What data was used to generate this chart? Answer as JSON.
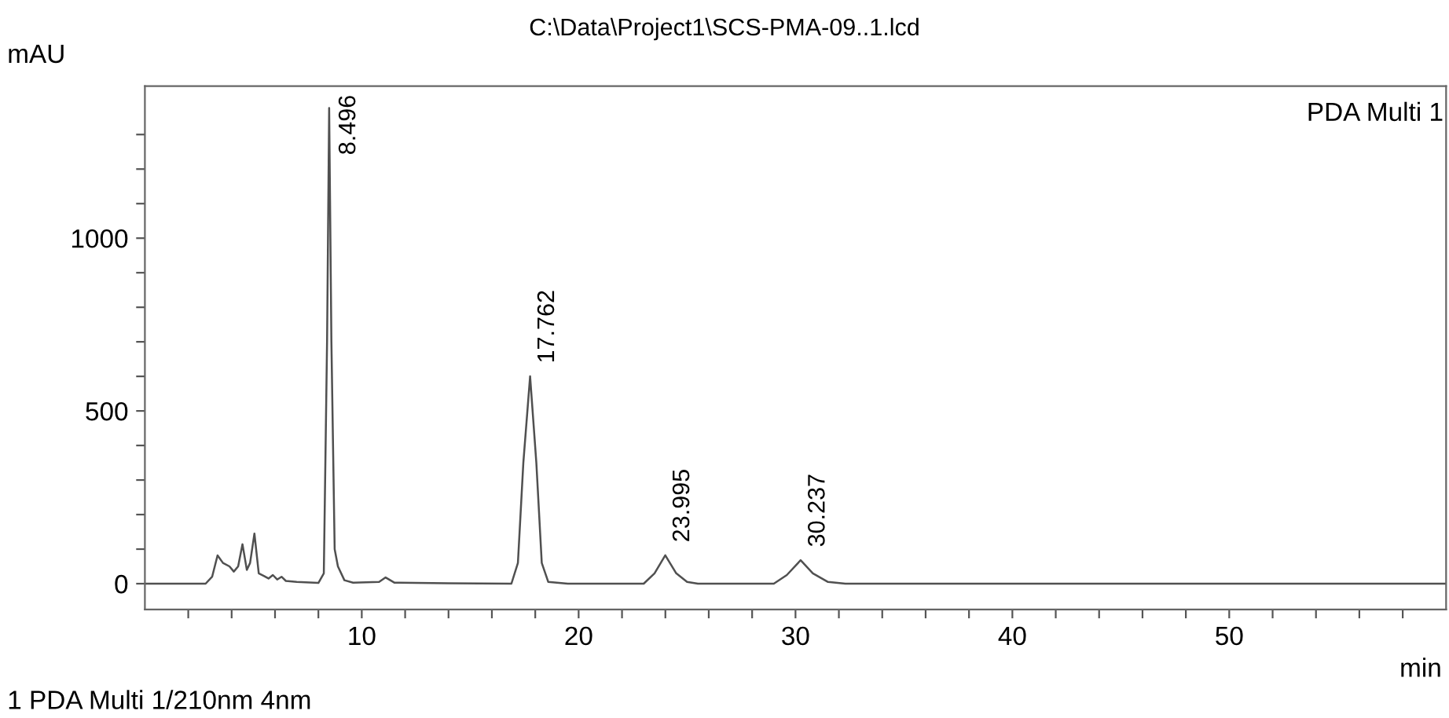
{
  "chart_data": {
    "type": "line",
    "title": "C:\\Data\\Project1\\SCS-PMA-09..1.lcd",
    "xlabel": "min",
    "ylabel": "mAU",
    "xlim": [
      0,
      60
    ],
    "ylim": [
      -75,
      1440
    ],
    "xticks": [
      {
        "value": 2,
        "label": null
      },
      {
        "value": 4,
        "label": null
      },
      {
        "value": 6,
        "label": null
      },
      {
        "value": 8,
        "label": null
      },
      10,
      {
        "value": 12,
        "label": null
      },
      {
        "value": 14,
        "label": null
      },
      {
        "value": 16,
        "label": null
      },
      {
        "value": 18,
        "label": null
      },
      20,
      {
        "value": 22,
        "label": null
      },
      {
        "value": 24,
        "label": null
      },
      {
        "value": 26,
        "label": null
      },
      {
        "value": 28,
        "label": null
      },
      30,
      {
        "value": 32,
        "label": null
      },
      {
        "value": 34,
        "label": null
      },
      {
        "value": 36,
        "label": null
      },
      {
        "value": 38,
        "label": null
      },
      40,
      {
        "value": 42,
        "label": null
      },
      {
        "value": 44,
        "label": null
      },
      {
        "value": 46,
        "label": null
      },
      {
        "value": 48,
        "label": null
      },
      50,
      {
        "value": 52,
        "label": null
      },
      {
        "value": 54,
        "label": null
      },
      {
        "value": 56,
        "label": null
      },
      {
        "value": 58,
        "label": null
      }
    ],
    "yticks": [
      0,
      {
        "value": 100,
        "label": null
      },
      {
        "value": 200,
        "label": null
      },
      {
        "value": 300,
        "label": null
      },
      {
        "value": 400,
        "label": null
      },
      500,
      {
        "value": 600,
        "label": null
      },
      {
        "value": 700,
        "label": null
      },
      {
        "value": 800,
        "label": null
      },
      {
        "value": 900,
        "label": null
      },
      1000,
      {
        "value": 1100,
        "label": null
      },
      {
        "value": 1200,
        "label": null
      },
      {
        "value": 1300,
        "label": null
      }
    ],
    "grid": false,
    "legend": false,
    "marker": "none",
    "line_style": "solid",
    "series": [
      {
        "color": "#505050",
        "x": [
          0,
          2.8,
          3.1,
          3.35,
          3.6,
          3.9,
          4.1,
          4.3,
          4.5,
          4.7,
          4.85,
          5.05,
          5.25,
          5.5,
          5.7,
          5.9,
          6.1,
          6.3,
          6.5,
          7.0,
          8.0,
          8.25,
          8.4,
          8.496,
          8.6,
          8.75,
          8.9,
          9.2,
          9.6,
          10.8,
          11.1,
          11.5,
          14,
          16.9,
          17.2,
          17.45,
          17.762,
          18.05,
          18.3,
          18.6,
          19.5,
          23.0,
          23.5,
          23.995,
          24.5,
          25,
          25.5,
          29.0,
          29.6,
          30.237,
          30.8,
          31.5,
          32.3,
          60
        ],
        "values": [
          0,
          0,
          20,
          82,
          60,
          50,
          35,
          50,
          114,
          40,
          60,
          145,
          30,
          22,
          15,
          25,
          12,
          20,
          8,
          5,
          2,
          30,
          700,
          1377,
          700,
          100,
          50,
          10,
          3,
          5,
          18,
          3,
          1,
          0,
          60,
          350,
          600,
          350,
          60,
          5,
          0,
          0,
          30,
          82,
          30,
          5,
          0,
          0,
          25,
          68,
          30,
          5,
          0,
          0
        ]
      }
    ],
    "annotations": [
      "PDA Multi 1",
      "1 PDA Multi 1/210nm 4nm",
      {
        "text": "8.496",
        "x": 8.496,
        "y": 1377
      },
      {
        "text": "17.762",
        "x": 17.762,
        "y": 600
      },
      {
        "text": "23.995",
        "x": 23.995,
        "y": 82
      },
      {
        "text": "30.237",
        "x": 30.237,
        "y": 68
      }
    ]
  }
}
